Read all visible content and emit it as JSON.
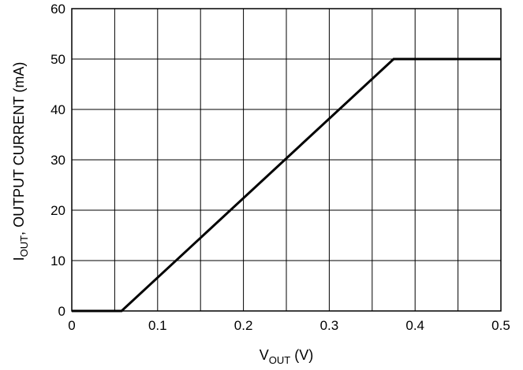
{
  "chart_data": {
    "type": "line",
    "xlabel": {
      "main": "V",
      "sub": "OUT",
      "rest": " (V)"
    },
    "ylabel": {
      "main": "I",
      "sub": "OUT",
      "rest": ", OUTPUT CURRENT (mA)"
    },
    "xlim": [
      0,
      0.5
    ],
    "ylim": [
      0,
      60
    ],
    "x_ticks": [
      0,
      0.1,
      0.2,
      0.3,
      0.4,
      0.5
    ],
    "x_tick_labels": [
      "0",
      "0.1",
      "0.2",
      "0.3",
      "0.4",
      "0.5"
    ],
    "y_ticks": [
      0,
      10,
      20,
      30,
      40,
      50,
      60
    ],
    "y_tick_labels": [
      "0",
      "10",
      "20",
      "30",
      "40",
      "50",
      "60"
    ],
    "x_grid_step": 0.05,
    "y_grid_step": 10,
    "grid": true,
    "series": [
      {
        "x": [
          0,
          0.058,
          0.375,
          0.5
        ],
        "y": [
          0,
          0,
          50,
          50
        ],
        "color": "#000000"
      }
    ]
  }
}
